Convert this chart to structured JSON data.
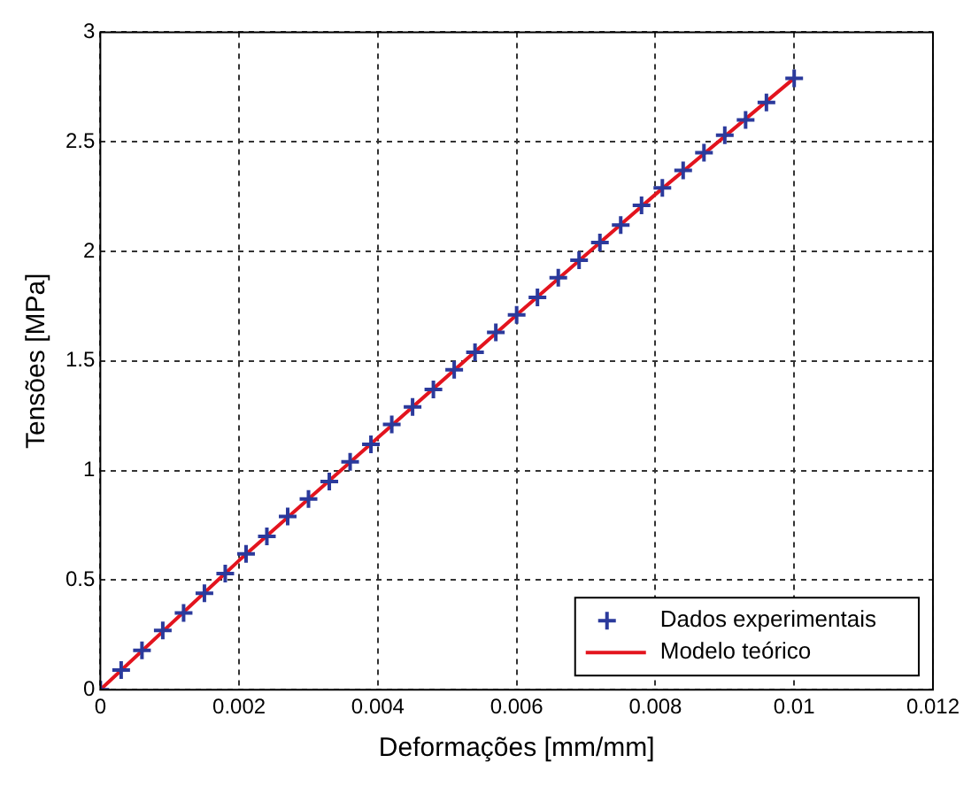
{
  "chart_data": {
    "type": "scatter",
    "xlabel": "Deformações [mm/mm]",
    "ylabel": "Tensões [MPa]",
    "xlim": [
      0,
      0.012
    ],
    "xticks": [
      0,
      0.002,
      0.004,
      0.006,
      0.008,
      0.01,
      0.012
    ],
    "ylim": [
      0,
      3
    ],
    "yticks": [
      0,
      0.5,
      1,
      1.5,
      2,
      2.5,
      3
    ],
    "grid": true,
    "legend": "bottom right",
    "series": [
      {
        "name": "Dados experimentais",
        "type": "scatter",
        "marker": "cross",
        "color": "#2b3a9c",
        "x": [
          0,
          0.0003,
          0.0006,
          0.0009,
          0.0012,
          0.0015,
          0.0018,
          0.0021,
          0.0024,
          0.0027,
          0.003,
          0.0033,
          0.0036,
          0.0039,
          0.0042,
          0.0045,
          0.0048,
          0.0051,
          0.0054,
          0.0057,
          0.006,
          0.0063,
          0.0066,
          0.0069,
          0.0072,
          0.0075,
          0.0078,
          0.0081,
          0.0084,
          0.0087,
          0.009,
          0.0093,
          0.0096,
          0.01
        ],
        "values": [
          0,
          0.09,
          0.18,
          0.27,
          0.35,
          0.44,
          0.53,
          0.62,
          0.7,
          0.79,
          0.87,
          0.95,
          1.04,
          1.12,
          1.21,
          1.29,
          1.37,
          1.46,
          1.54,
          1.63,
          1.71,
          1.79,
          1.88,
          1.96,
          2.04,
          2.12,
          2.21,
          2.29,
          2.37,
          2.45,
          2.53,
          2.6,
          2.68,
          2.79
        ]
      },
      {
        "name": "Modelo teórico",
        "type": "line",
        "marker": "none",
        "line_style": "solid",
        "color": "#e3141e",
        "x": [
          0,
          0.002,
          0.004,
          0.006,
          0.008,
          0.01
        ],
        "values": [
          0,
          0.59,
          1.15,
          1.71,
          2.26,
          2.79
        ]
      }
    ]
  }
}
